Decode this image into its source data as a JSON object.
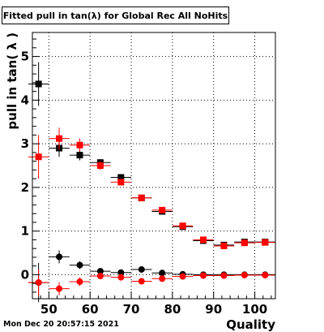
{
  "title": "Fitted pull in tan(λ) for Global Rec All NoHits",
  "footer_text": "Mon Dec 20 20:57:15 2021",
  "colors": {
    "series_black": "#000000",
    "series_red": "#ff0000",
    "frame": "#000000",
    "grid": "#000000"
  },
  "chart_data": {
    "type": "scatter",
    "title": "Fitted pull in tan(λ) for Global Rec All NoHits",
    "xlabel": "Quality",
    "ylabel": "pull in tan( λ )",
    "xlim": [
      46,
      105
    ],
    "ylim": [
      -0.55,
      5.55
    ],
    "xticks": [
      50,
      60,
      70,
      80,
      90,
      100
    ],
    "yticks": [
      0,
      1,
      2,
      3,
      4,
      5
    ],
    "grid": true,
    "series": [
      {
        "marker": "square",
        "color": "#000000",
        "x": [
          47.5,
          52.5,
          57.5,
          62.5,
          67.5,
          72.5,
          77.5,
          82.5,
          87.5,
          92.5,
          97.5,
          102.5
        ],
        "y": [
          4.37,
          2.9,
          2.74,
          2.57,
          2.23,
          1.76,
          1.45,
          1.1,
          0.78,
          0.68,
          0.75,
          0.75
        ],
        "yerr": [
          0.5,
          0.2,
          0.12,
          0.08,
          0.05,
          0.04,
          0.04,
          0.03,
          0.03,
          0.03,
          0.03,
          0.03
        ]
      },
      {
        "marker": "square",
        "color": "#ff0000",
        "x": [
          47.5,
          52.5,
          57.5,
          62.5,
          67.5,
          72.5,
          77.5,
          82.5,
          87.5,
          92.5,
          97.5,
          102.5
        ],
        "y": [
          2.7,
          3.12,
          2.97,
          2.5,
          2.12,
          1.76,
          1.48,
          1.12,
          0.8,
          0.66,
          0.73,
          0.74
        ],
        "yerr": [
          0.5,
          0.25,
          0.15,
          0.1,
          0.07,
          0.05,
          0.05,
          0.04,
          0.03,
          0.03,
          0.03,
          0.03
        ]
      },
      {
        "marker": "circle",
        "color": "#000000",
        "x": [
          47.5,
          52.5,
          57.5,
          62.5,
          67.5,
          72.5,
          77.5,
          82.5,
          87.5,
          92.5,
          97.5,
          102.5
        ],
        "y": [
          -0.18,
          0.41,
          0.22,
          0.08,
          0.05,
          0.12,
          0.04,
          0.01,
          0.0,
          0.0,
          0.0,
          0.0
        ],
        "yerr": [
          0.45,
          0.15,
          0.09,
          0.06,
          0.04,
          0.04,
          0.03,
          0.03,
          0.02,
          0.02,
          0.02,
          0.02
        ]
      },
      {
        "marker": "circle",
        "color": "#ff0000",
        "x": [
          47.5,
          52.5,
          57.5,
          62.5,
          67.5,
          72.5,
          77.5,
          82.5,
          87.5,
          92.5,
          97.5,
          102.5
        ],
        "y": [
          -0.18,
          -0.32,
          -0.16,
          -0.03,
          -0.06,
          -0.15,
          -0.09,
          -0.04,
          -0.02,
          -0.02,
          -0.01,
          -0.01
        ],
        "yerr": [
          0.3,
          0.15,
          0.1,
          0.06,
          0.05,
          0.04,
          0.04,
          0.03,
          0.02,
          0.02,
          0.02,
          0.02
        ]
      }
    ]
  }
}
